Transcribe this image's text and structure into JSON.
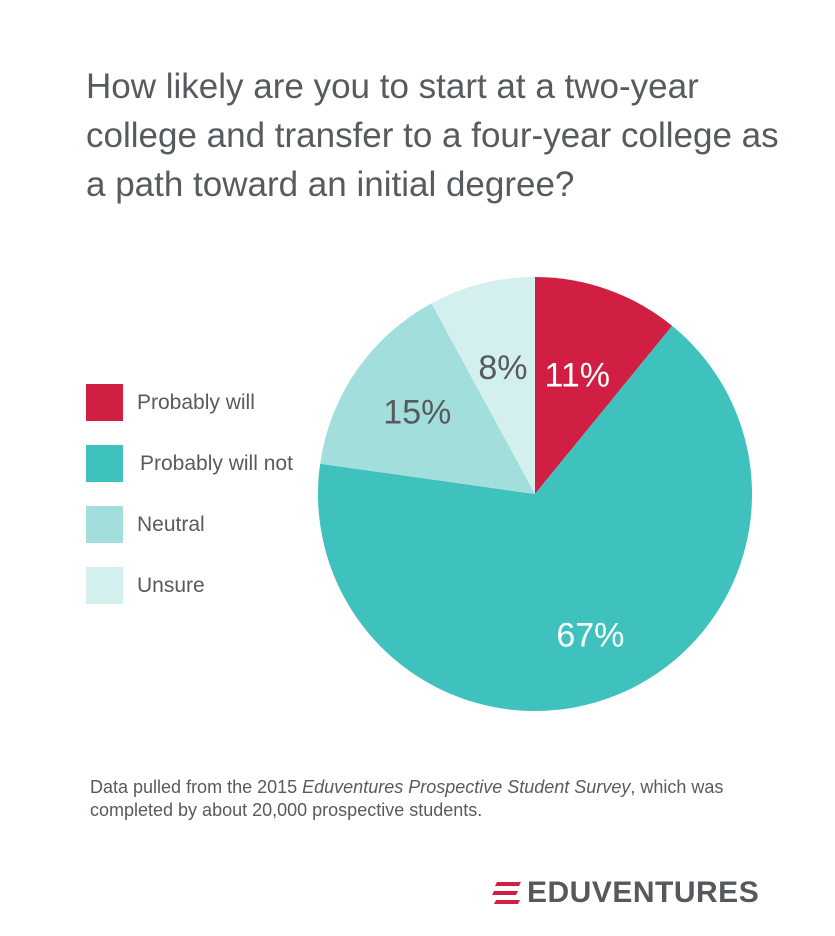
{
  "chart_data": {
    "type": "pie",
    "title": "How likely are you to start at a two-year college and transfer to a four-year college as a path toward an initial degree?",
    "categories": [
      "Probably will",
      "Probably will not",
      "Neutral",
      "Unsure"
    ],
    "values": [
      11,
      67,
      15,
      8
    ],
    "value_labels": [
      "11%",
      "67%",
      "15%",
      "8%"
    ],
    "colors": [
      "#d11f43",
      "#3fc2bd",
      "#a2dfdc",
      "#d3efee"
    ],
    "label_colors": [
      "#ffffff",
      "#ffffff",
      "#565b5e",
      "#565b5e"
    ],
    "start": "12 o'clock",
    "direction": "clockwise",
    "legend_position": "left"
  },
  "footnote": {
    "pre": "Data pulled from the 2015 ",
    "emphasis": "Eduventures Prospective Student Survey",
    "post": ", which was completed by about 20,000 prospective students."
  },
  "brand": {
    "name": "EDUVENTURES",
    "logo_icon": "stacked-stripes-icon",
    "color": "#d11f43"
  }
}
